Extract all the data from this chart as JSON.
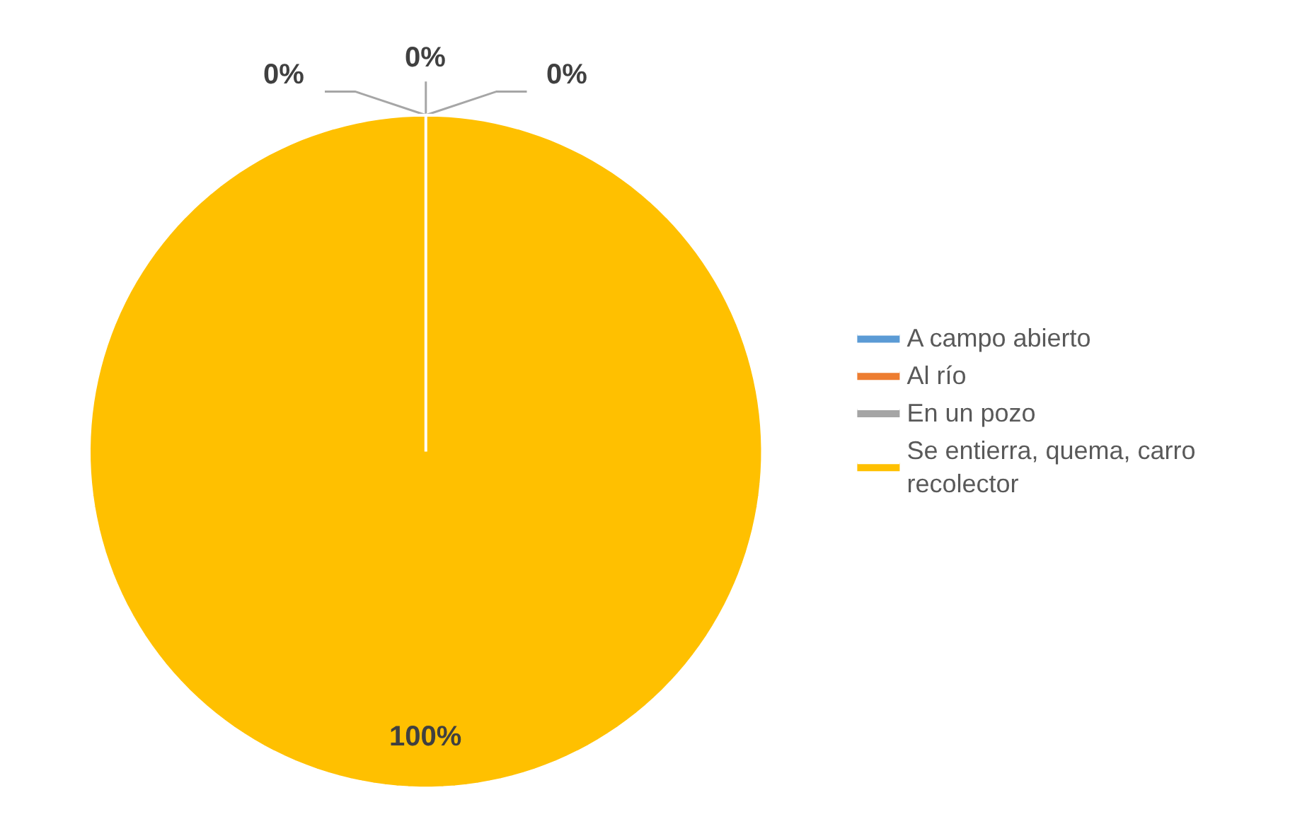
{
  "chart_data": {
    "type": "pie",
    "categories": [
      "A campo abierto",
      "Al río",
      "En un pozo",
      "Se entierra, quema, carro recolector"
    ],
    "values": [
      0,
      0,
      0,
      100
    ],
    "colors": [
      "#5b9bd5",
      "#ed7d31",
      "#a5a5a5",
      "#ffc000"
    ],
    "value_labels": [
      "0%",
      "0%",
      "0%",
      "100%"
    ],
    "legend": "right"
  }
}
